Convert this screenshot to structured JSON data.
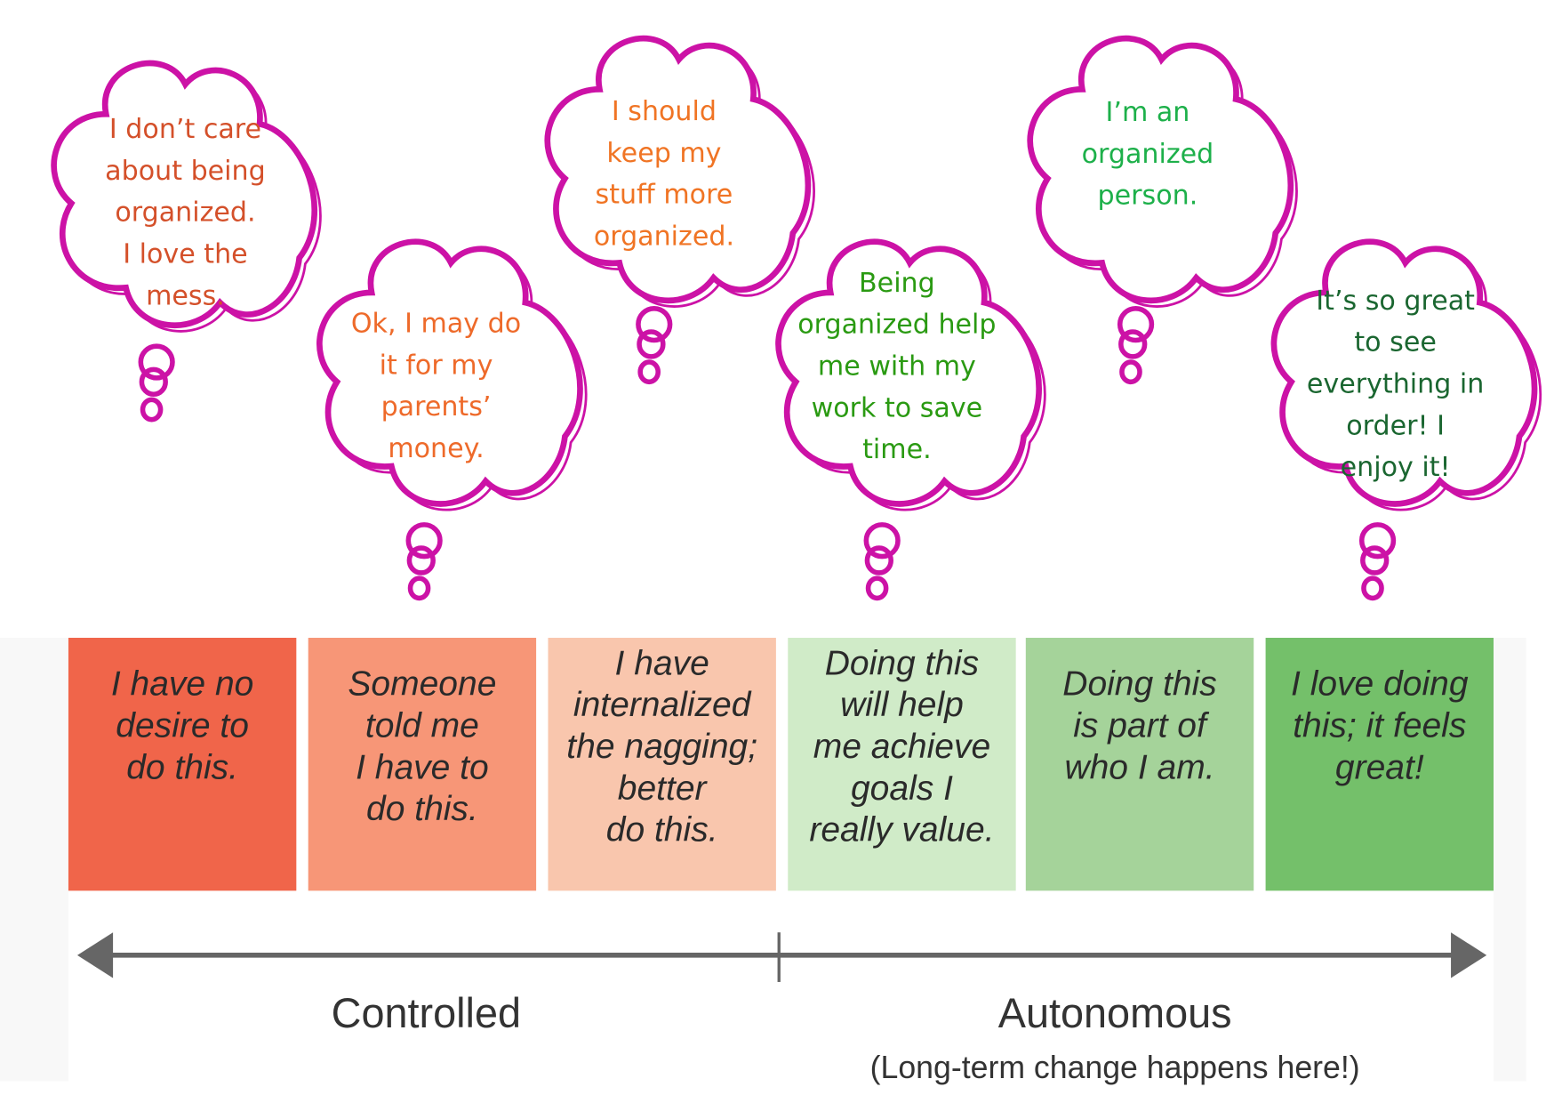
{
  "colors": {
    "cloud_outline": "#cc12a6",
    "axis": "#666666",
    "background_panel": "#f8f8f8"
  },
  "thoughts": [
    {
      "lines": [
        "I don’t care",
        "about being",
        "organized.",
        "I love the",
        "mess."
      ],
      "color": "#d4502a"
    },
    {
      "lines": [
        "Ok, I may do",
        "it for my",
        "parents’",
        "money."
      ],
      "color": "#ee6a2a"
    },
    {
      "lines": [
        "I should",
        "keep my",
        "stuff more",
        "organized."
      ],
      "color": "#f07424"
    },
    {
      "lines": [
        "Being",
        "organized help",
        "me with my",
        "work to save",
        "time."
      ],
      "color": "#2a9a12"
    },
    {
      "lines": [
        "I’m an",
        "organized",
        "person."
      ],
      "color": "#1db04a"
    },
    {
      "lines": [
        "It’s so great",
        "to see",
        "everything in",
        "order! I",
        "enjoy it!"
      ],
      "color": "#1a6630"
    }
  ],
  "stages": [
    {
      "lines": [
        "I have no",
        "desire to",
        "do this."
      ],
      "color": "#f0654a"
    },
    {
      "lines": [
        "Someone",
        "told me",
        "I have to",
        "do this."
      ],
      "color": "#f79677"
    },
    {
      "lines": [
        "I have",
        "internalized",
        "the nagging;",
        "better",
        "do this."
      ],
      "color": "#f9c6ad"
    },
    {
      "lines": [
        "Doing this",
        "will help",
        "me achieve",
        "goals I",
        "really value."
      ],
      "color": "#d0ebc8"
    },
    {
      "lines": [
        "Doing this",
        "is part of",
        "who I am."
      ],
      "color": "#a5d39a"
    },
    {
      "lines": [
        "I love doing",
        "this; it feels",
        "great!"
      ],
      "color": "#74c06a"
    }
  ],
  "axis": {
    "left_label": "Controlled",
    "right_label": "Autonomous",
    "right_sublabel": "(Long-term change happens here!)"
  }
}
